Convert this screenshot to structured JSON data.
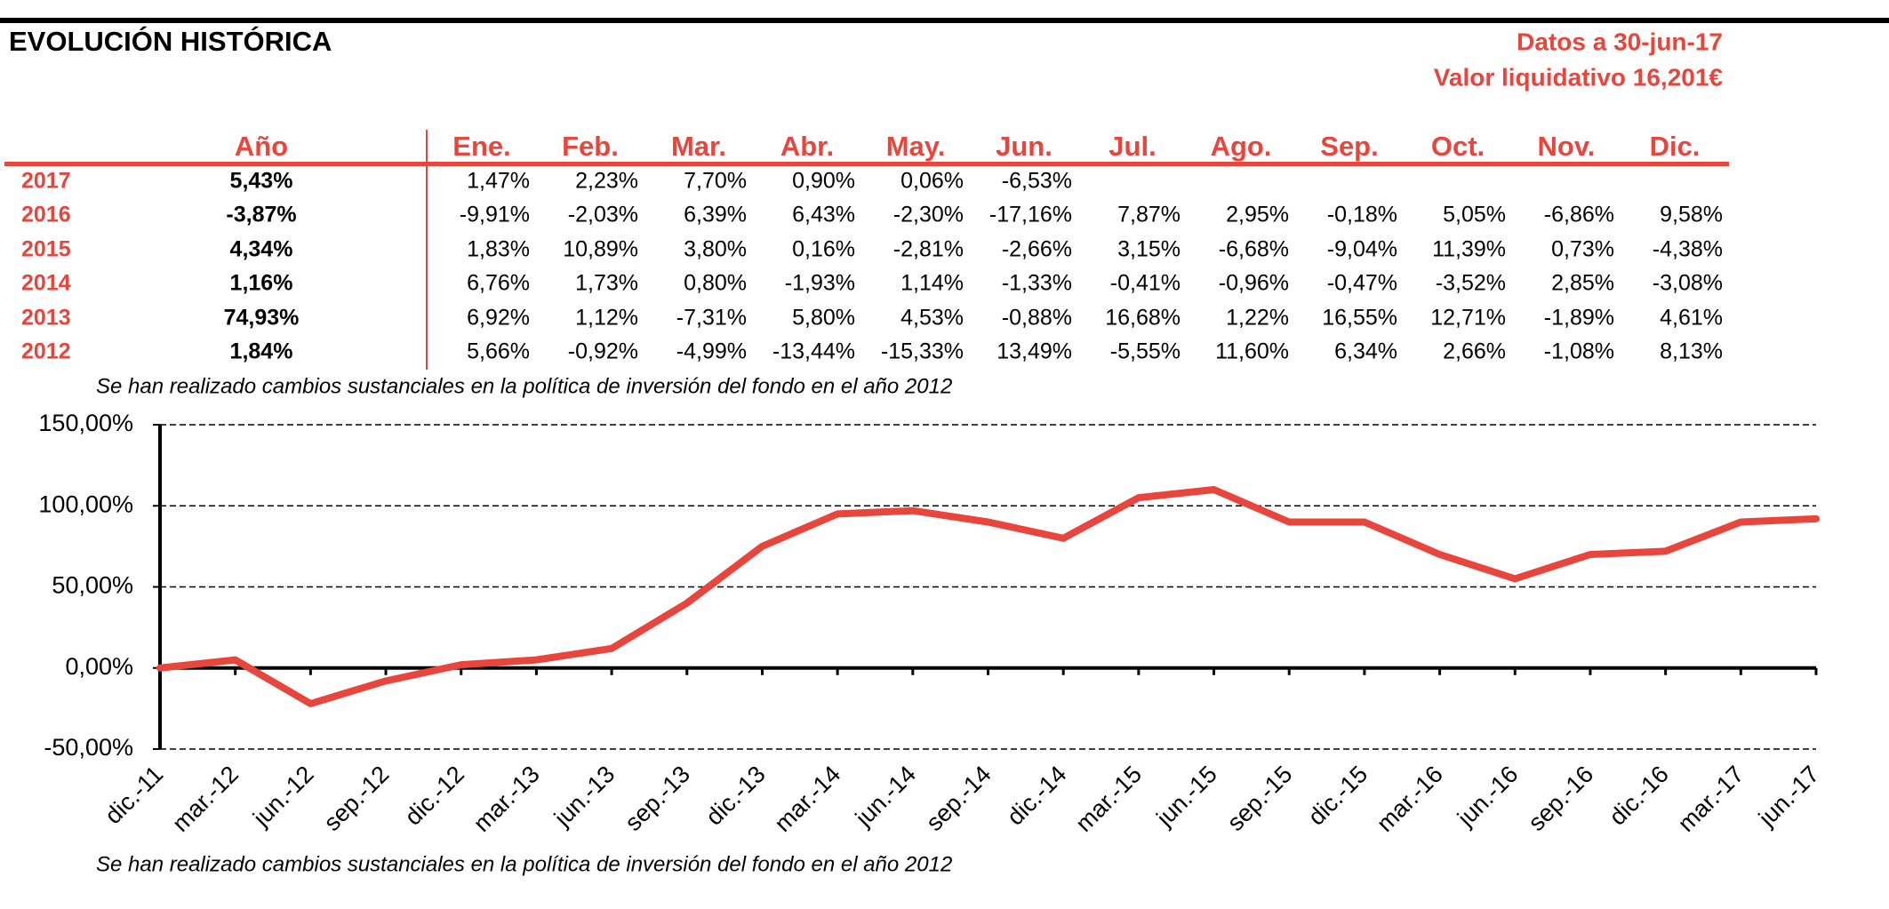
{
  "header": {
    "title": "EVOLUCIÓN HISTÓRICA",
    "date": "Datos a 30-jun-17",
    "nav": "Valor liquidativo 16,201€"
  },
  "table": {
    "columns": [
      "Año",
      "Ene.",
      "Feb.",
      "Mar.",
      "Abr.",
      "May.",
      "Jun.",
      "Jul.",
      "Ago.",
      "Sep.",
      "Oct.",
      "Nov.",
      "Dic."
    ],
    "rows": [
      [
        "2017",
        "5,43%",
        "1,47%",
        "2,23%",
        "7,70%",
        "0,90%",
        "0,06%",
        "-6,53%"
      ],
      [
        "2016",
        "-3,87%",
        "-9,91%",
        "-2,03%",
        "6,39%",
        "6,43%",
        "-2,30%",
        "-17,16%",
        "7,87%",
        "2,95%",
        "-0,18%",
        "5,05%",
        "-6,86%",
        "9,58%"
      ],
      [
        "2015",
        "4,34%",
        "1,83%",
        "10,89%",
        "3,80%",
        "0,16%",
        "-2,81%",
        "-2,66%",
        "3,15%",
        "-6,68%",
        "-9,04%",
        "11,39%",
        "0,73%",
        "-4,38%"
      ],
      [
        "2014",
        "1,16%",
        "6,76%",
        "1,73%",
        "0,80%",
        "-1,93%",
        "1,14%",
        "-1,33%",
        "-0,41%",
        "-0,96%",
        "-0,47%",
        "-3,52%",
        "2,85%",
        "-3,08%"
      ],
      [
        "2013",
        "74,93%",
        "6,92%",
        "1,12%",
        "-7,31%",
        "5,80%",
        "4,53%",
        "-0,88%",
        "16,68%",
        "1,22%",
        "16,55%",
        "12,71%",
        "-1,89%",
        "4,61%"
      ],
      [
        "2012",
        "1,84%",
        "5,66%",
        "-0,92%",
        "-4,99%",
        "-13,44%",
        "-15,33%",
        "13,49%",
        "-5,55%",
        "11,60%",
        "6,34%",
        "2,66%",
        "-1,08%",
        "8,13%"
      ]
    ]
  },
  "note_table": "Se han realizado cambios sustanciales en la política de inversión del fondo en el año 2012",
  "chart_data": {
    "type": "line",
    "categories": [
      "dic.-11",
      "mar.-12",
      "jun.-12",
      "sep.-12",
      "dic.-12",
      "mar.-13",
      "jun.-13",
      "sep.-13",
      "dic.-13",
      "mar.-14",
      "jun.-14",
      "sep.-14",
      "dic.-14",
      "mar.-15",
      "jun.-15",
      "sep.-15",
      "dic.-15",
      "mar.-16",
      "jun.-16",
      "sep.-16",
      "dic.-16",
      "mar.-17",
      "jun.-17"
    ],
    "values": [
      0,
      5,
      -22,
      -8,
      2,
      5,
      12,
      40,
      75,
      95,
      97,
      90,
      80,
      105,
      110,
      90,
      90,
      70,
      55,
      70,
      72,
      90,
      92
    ],
    "color": "#e8453c",
    "ylim": [
      -50,
      150
    ],
    "yticks": [
      {
        "value": -50,
        "label": "-50,00%"
      },
      {
        "value": 0,
        "label": "0,00%"
      },
      {
        "value": 50,
        "label": "50,00%"
      },
      {
        "value": 100,
        "label": "100,00%"
      },
      {
        "value": 150,
        "label": "150,00%"
      }
    ],
    "grid": true
  },
  "note_chart": "Se han realizado cambios sustanciales en la política de inversión del fondo en el año 2012"
}
